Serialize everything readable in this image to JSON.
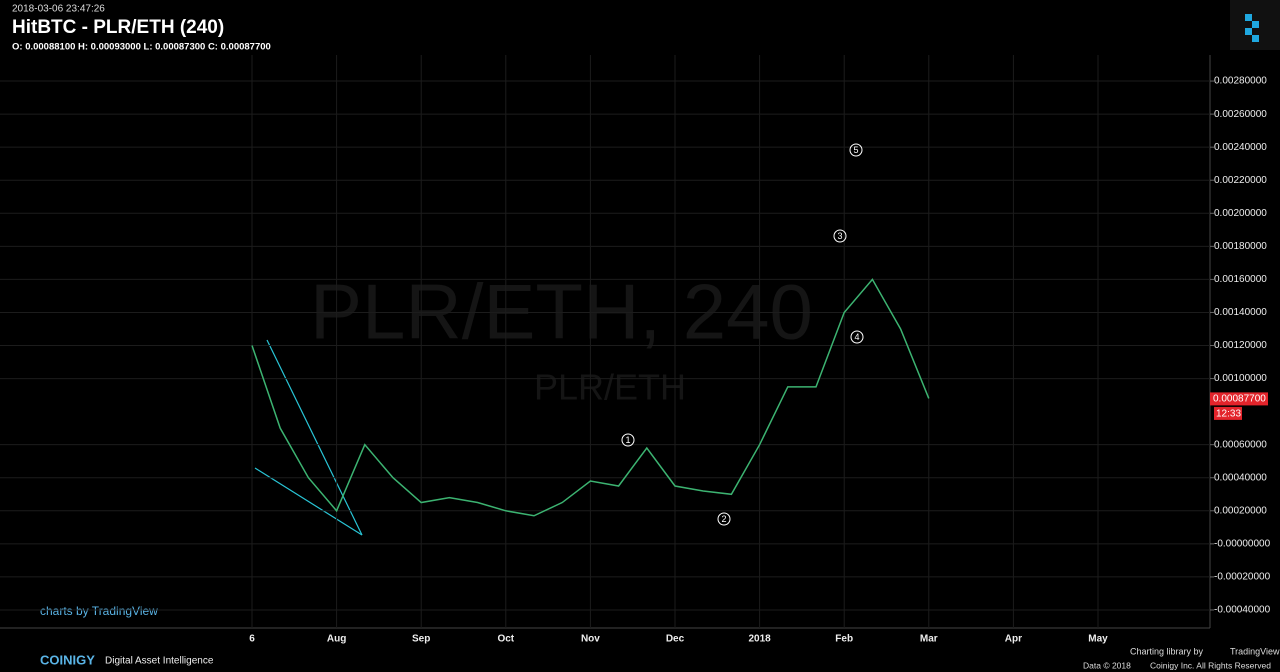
{
  "chart_data": {
    "type": "line",
    "timestamp": "2018-03-06 23:47:26",
    "title": "HitBTC - PLR/ETH (240)",
    "ohlc": "O: 0.00088100 H: 0.00093000 L: 0.00087300 C: 0.00087700",
    "watermark": "PLR/ETH, 240",
    "watermark_sub": "PLR/ETH",
    "categories": [
      "6",
      null,
      null,
      "Aug",
      null,
      null,
      "Sep",
      null,
      null,
      "Oct",
      null,
      null,
      "Nov",
      null,
      null,
      "Dec",
      null,
      null,
      "2018",
      null,
      null,
      "Feb",
      null,
      null,
      "Mar",
      null,
      null,
      "Apr",
      null,
      null,
      "May"
    ],
    "series": [
      {
        "name": "PLR/ETH",
        "color": "#3cb371",
        "values": [
          0.0012,
          0.0007,
          0.0004,
          0.0002,
          0.0006,
          0.0004,
          0.00025,
          0.00028,
          0.00025,
          0.0002,
          0.00017,
          0.00025,
          0.00038,
          0.00035,
          0.00058,
          0.00035,
          0.00032,
          0.0003,
          0.0006,
          0.00095,
          0.00095,
          0.0014,
          0.0016,
          0.0013,
          0.00088,
          null,
          null,
          null,
          null,
          null,
          null
        ]
      }
    ],
    "ylim": [
      -0.0005,
      0.003
    ],
    "yticks": [
      {
        "value": 0.0028,
        "label": "0.00280000"
      },
      {
        "value": 0.0026,
        "label": "0.00260000"
      },
      {
        "value": 0.0024,
        "label": "0.00240000"
      },
      {
        "value": 0.0022,
        "label": "0.00220000"
      },
      {
        "value": 0.002,
        "label": "0.00200000"
      },
      {
        "value": 0.0018,
        "label": "0.00180000"
      },
      {
        "value": 0.0016,
        "label": "0.00160000"
      },
      {
        "value": 0.0014,
        "label": "0.00140000"
      },
      {
        "value": 0.0012,
        "label": "0.00120000"
      },
      {
        "value": 0.001,
        "label": "0.00100000"
      },
      {
        "value": 0.0006,
        "label": "0.00060000"
      },
      {
        "value": 0.0004,
        "label": "0.00040000"
      },
      {
        "value": 0.0002,
        "label": "0.00020000"
      },
      {
        "value": 0,
        "label": "-0.00000000"
      },
      {
        "value": -0.0002,
        "label": "-0.00020000"
      },
      {
        "value": -0.0004,
        "label": "-0.00040000"
      }
    ],
    "last_price": {
      "value": 0.000877,
      "label": "0.00087700"
    },
    "countdown": "12:33",
    "annotations": [
      "1",
      "2",
      "3",
      "4",
      "5"
    ],
    "grid": true,
    "footer": {
      "tv": "charts by TradingView",
      "brand": "COINIGY",
      "tagline": "Digital Asset Intelligence",
      "charting": "Charting library by",
      "tv_name": "TradingView",
      "data": "Data © 2018",
      "rights": "Coinigy Inc. All Rights Reserved"
    }
  }
}
